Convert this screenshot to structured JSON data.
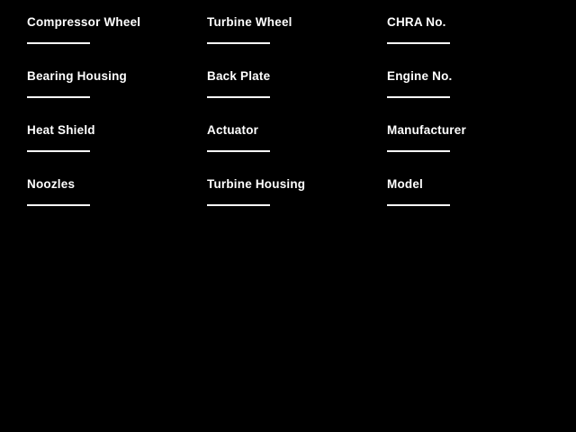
{
  "page": {
    "background_color": "#000000",
    "text_color": "#ffffff"
  },
  "form": {
    "fields": [
      {
        "label": "Compressor Wheel",
        "value": ""
      },
      {
        "label": "Bearing Housing",
        "value": ""
      },
      {
        "label": "Heat Shield",
        "value": ""
      },
      {
        "label": "Noozles",
        "value": ""
      },
      {
        "label": "Turbine Wheel",
        "value": ""
      },
      {
        "label": "Back Plate",
        "value": ""
      },
      {
        "label": "Actuator",
        "value": ""
      },
      {
        "label": "Turbine Housing",
        "value": ""
      },
      {
        "label": "CHRA No.",
        "value": ""
      },
      {
        "label": "Engine No.",
        "value": ""
      },
      {
        "label": "Manufacturer",
        "value": ""
      },
      {
        "label": "Model",
        "value": ""
      }
    ]
  }
}
